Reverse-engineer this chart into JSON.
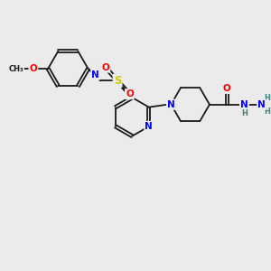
{
  "bg_color": "#ebebeb",
  "bond_color": "#1a1a1a",
  "atom_colors": {
    "N": "#0000ff",
    "O": "#ff0000",
    "S": "#cccc00",
    "H": "#408080",
    "C": "#1a1a1a"
  },
  "font_size": 7.5,
  "lw": 1.3
}
